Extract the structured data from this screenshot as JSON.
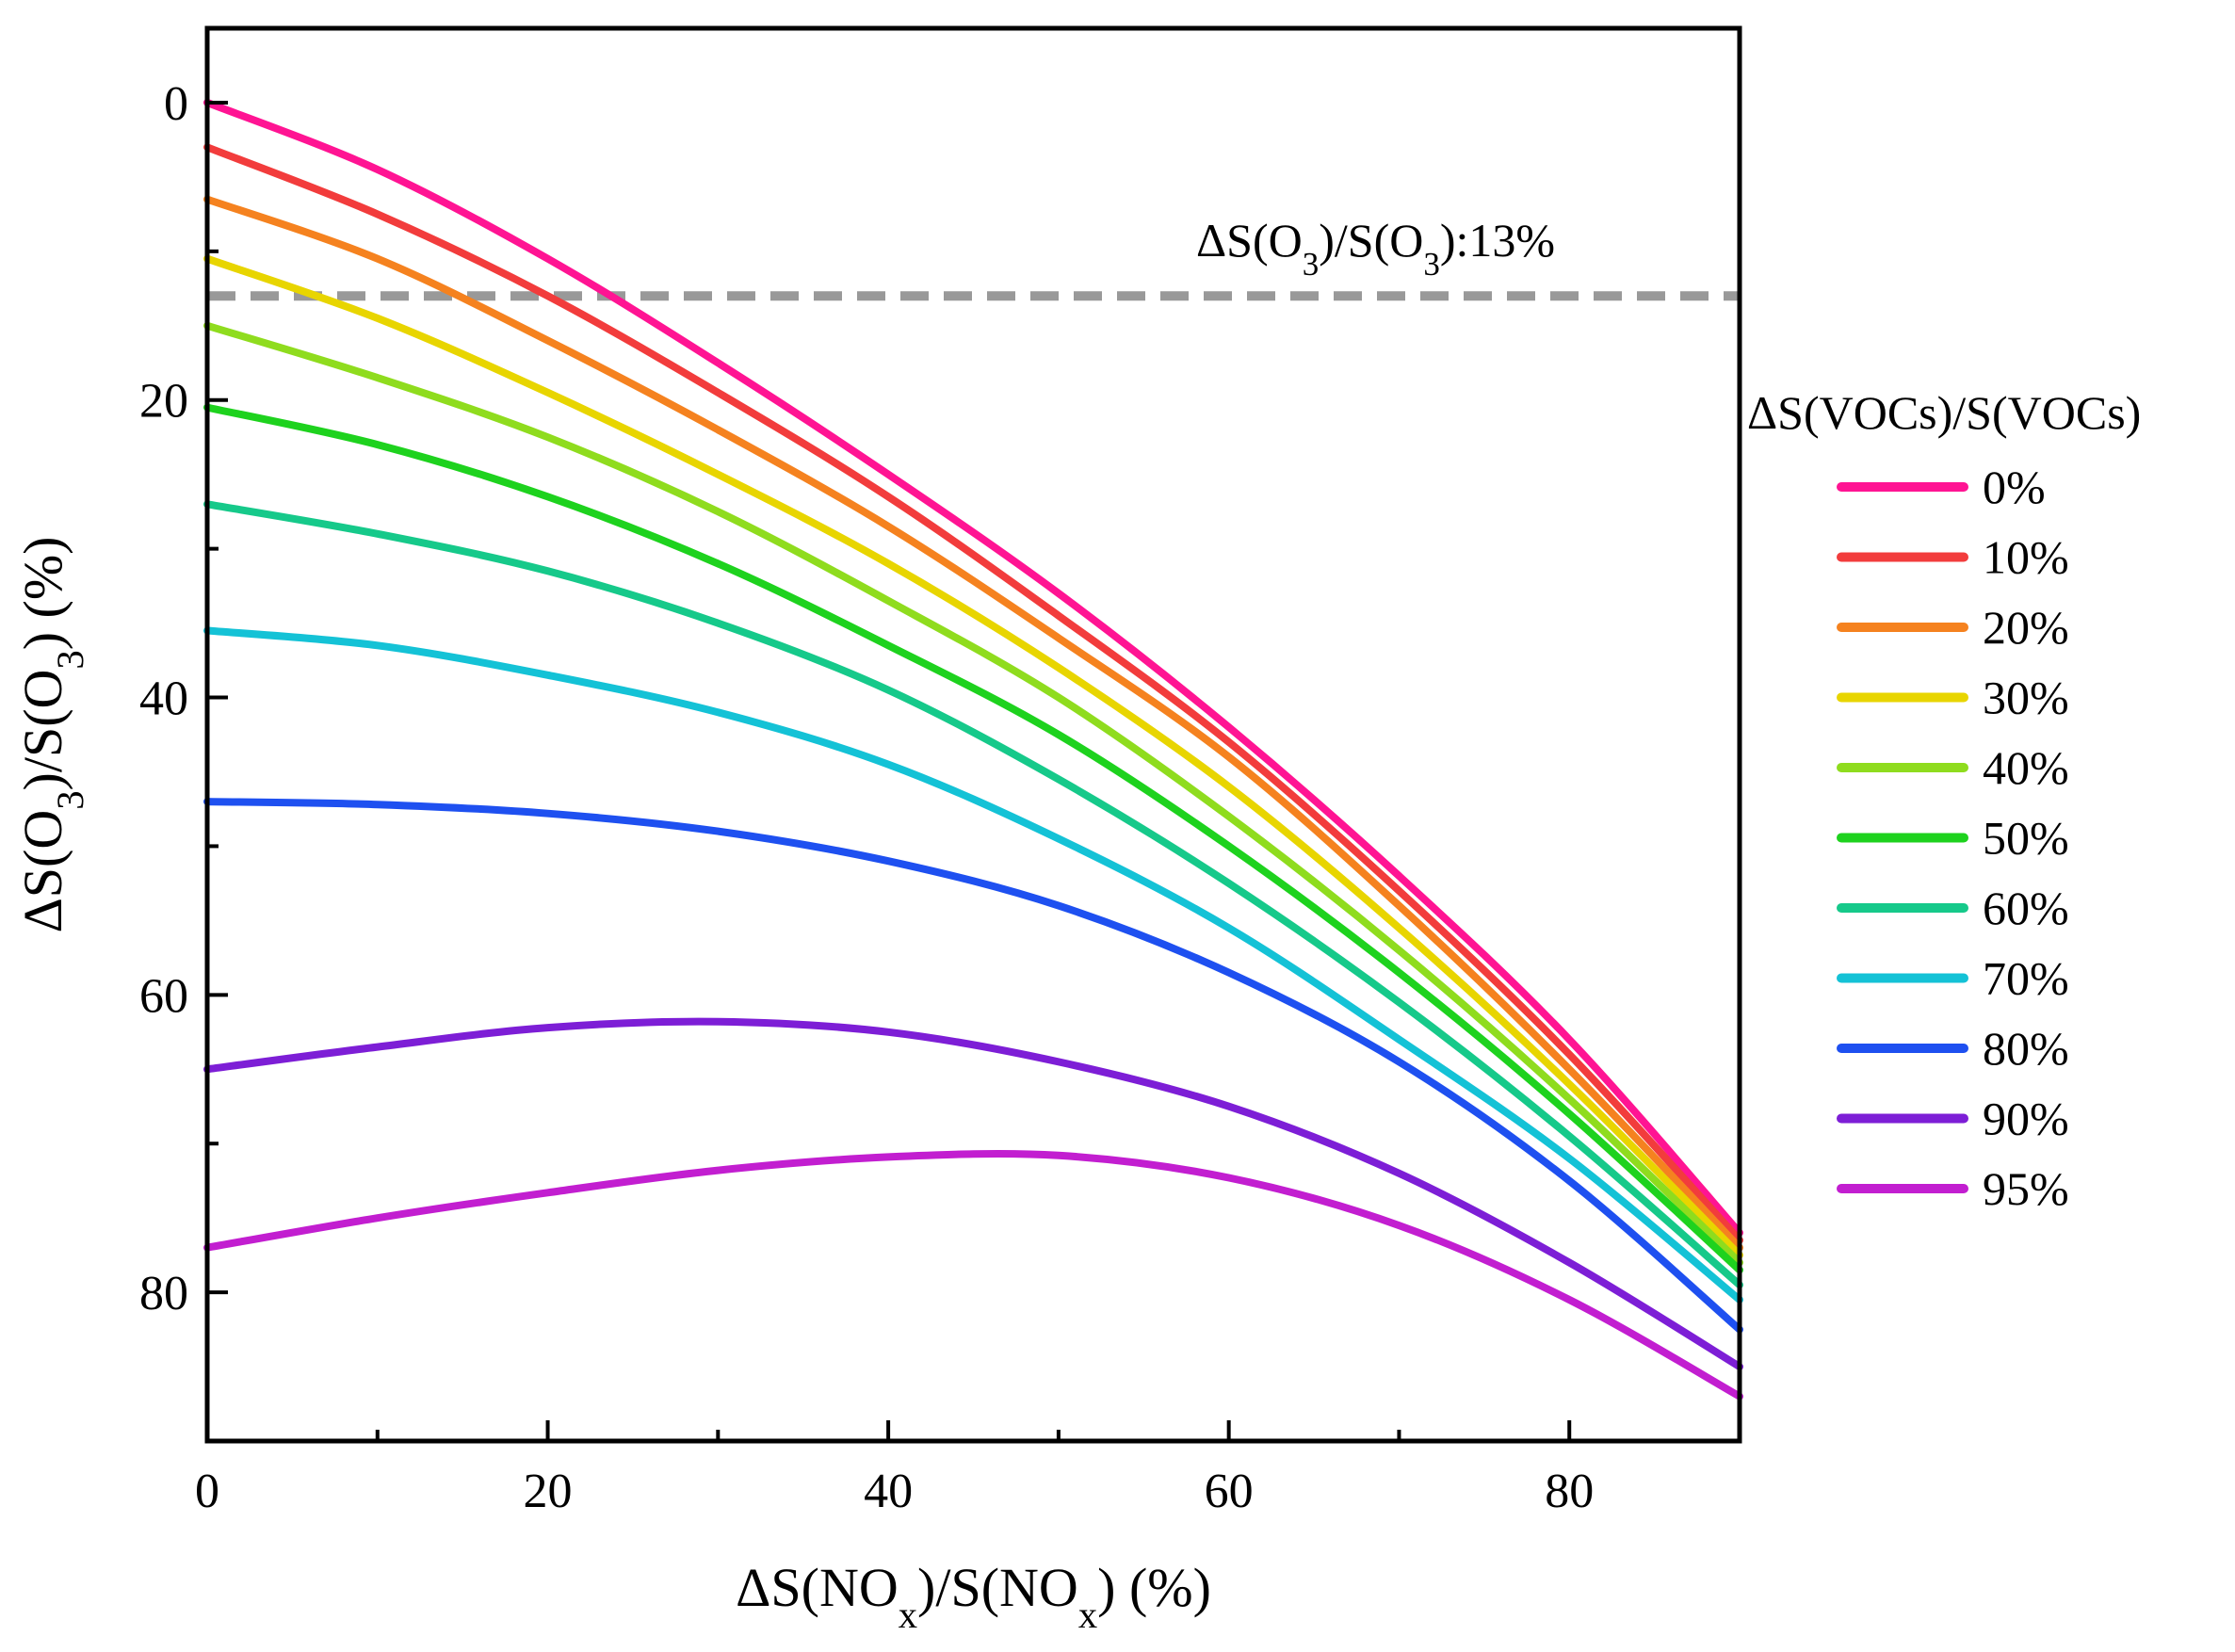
{
  "chart_data": {
    "type": "line",
    "xlabel_parts": {
      "pre": "ΔS(NO",
      "sub1": "x",
      "mid": ")/S(NO",
      "sub2": "x",
      "post": ") (%)"
    },
    "ylabel_parts": {
      "pre": "ΔS(O",
      "sub1": "3",
      "mid": ")/S(O",
      "sub2": "3",
      "post": ") (%)"
    },
    "xlim": [
      0,
      90
    ],
    "ylim": [
      -5,
      90
    ],
    "y_inverted": true,
    "x_ticks": [
      0,
      20,
      40,
      60,
      80
    ],
    "y_ticks": [
      0,
      20,
      40,
      60,
      80
    ],
    "x_tick_labels": [
      "0",
      "20",
      "40",
      "60",
      "80"
    ],
    "y_tick_labels": [
      "0",
      "20",
      "40",
      "60",
      "80"
    ],
    "grid": false,
    "legend_title": "ΔS(VOCs)/S(VOCs)",
    "legend_position": "right",
    "reference_line": {
      "y": 13,
      "style": "dashed",
      "color": "#999999",
      "label_parts": {
        "pre": "ΔS(O",
        "sub1": "3",
        "mid": ")/S(O",
        "sub2": "3",
        "post": "):13%"
      }
    },
    "x": [
      0,
      10,
      20,
      30,
      40,
      50,
      60,
      70,
      80,
      90
    ],
    "series": [
      {
        "name": "0%",
        "color": "#ff1493",
        "values": [
          0,
          4.5,
          10.5,
          17.5,
          25,
          33,
          42,
          52,
          63,
          76
        ]
      },
      {
        "name": "10%",
        "color": "#f23c3c",
        "values": [
          3,
          7.5,
          13,
          19.5,
          26.5,
          34.5,
          43,
          53,
          64,
          76.5
        ]
      },
      {
        "name": "20%",
        "color": "#f5821f",
        "values": [
          6.5,
          10.5,
          16,
          22,
          28.5,
          36,
          44,
          54,
          65,
          77
        ]
      },
      {
        "name": "30%",
        "color": "#e8d500",
        "values": [
          10.5,
          14.5,
          19.5,
          25,
          31,
          38,
          46,
          55.5,
          66,
          77.5
        ]
      },
      {
        "name": "40%",
        "color": "#8fdc1e",
        "values": [
          15,
          18.5,
          22.5,
          27.5,
          33.5,
          40,
          48,
          57,
          67,
          78
        ]
      },
      {
        "name": "50%",
        "color": "#1ed21e",
        "values": [
          20.5,
          23,
          26.5,
          31,
          36.5,
          42.5,
          50,
          58.5,
          68,
          78.5
        ]
      },
      {
        "name": "60%",
        "color": "#16c98a",
        "values": [
          27,
          29,
          31.5,
          35,
          39.5,
          45.5,
          52.5,
          60.5,
          69.5,
          79.5
        ]
      },
      {
        "name": "70%",
        "color": "#14c2d6",
        "values": [
          35.5,
          36.5,
          38.5,
          41,
          44.5,
          49.5,
          55.5,
          63,
          71,
          80.5
        ]
      },
      {
        "name": "80%",
        "color": "#1e50f0",
        "values": [
          47,
          47.2,
          47.8,
          49,
          51,
          54,
          58.5,
          64.5,
          72.5,
          82.5
        ]
      },
      {
        "name": "90%",
        "color": "#7d1ed6",
        "values": [
          65,
          63.5,
          62.2,
          61.8,
          62.5,
          64.5,
          67.5,
          72,
          78,
          85
        ]
      },
      {
        "name": "95%",
        "color": "#c21ed0",
        "values": [
          77,
          75,
          73.3,
          71.8,
          70.9,
          70.8,
          72.3,
          75.5,
          80.5,
          87
        ]
      }
    ]
  }
}
